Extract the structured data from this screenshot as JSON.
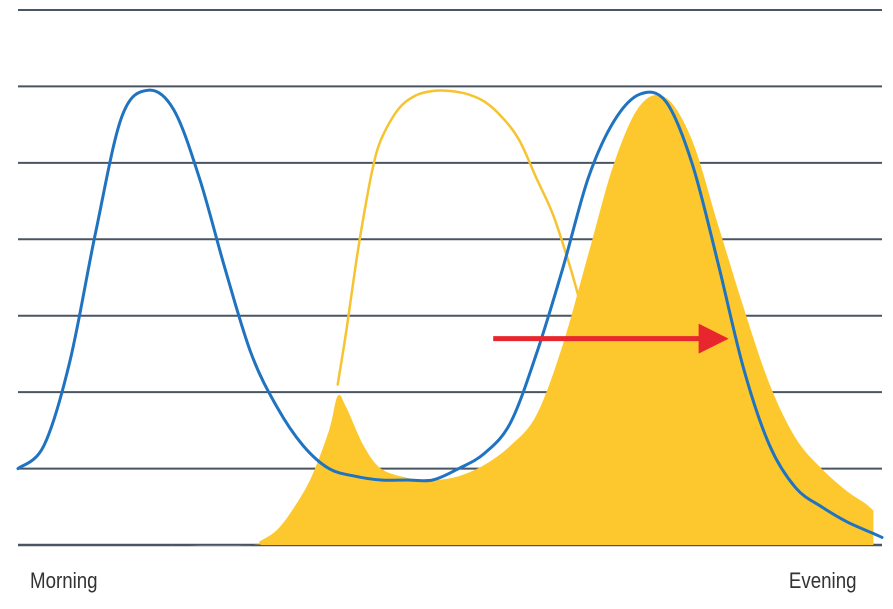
{
  "chart_data": {
    "type": "line",
    "title": "",
    "xlabel": "",
    "ylabel": "",
    "x_start_label": "Morning",
    "x_end_label": "Evening",
    "xlim": [
      0,
      100
    ],
    "ylim": [
      0,
      7
    ],
    "grid": true,
    "gridlines": [
      0,
      1,
      2,
      3,
      4,
      5,
      6,
      7
    ],
    "legend": "none",
    "series": [
      {
        "color": "#1f73c0",
        "fill": false,
        "x": [
          0,
          3,
          6,
          9,
          12,
          15,
          18,
          21,
          24,
          27,
          30,
          33,
          36,
          39,
          42,
          45,
          48,
          51,
          54,
          57,
          60,
          63,
          66,
          69,
          72,
          75,
          78,
          81,
          84,
          87,
          90,
          93,
          96,
          99,
          100
        ],
        "y": [
          1.0,
          1.3,
          2.4,
          4.1,
          5.6,
          5.95,
          5.7,
          4.8,
          3.6,
          2.5,
          1.8,
          1.3,
          1.0,
          0.9,
          0.85,
          0.85,
          0.85,
          1.0,
          1.2,
          1.6,
          2.5,
          3.6,
          4.8,
          5.55,
          5.9,
          5.8,
          5.0,
          3.7,
          2.3,
          1.3,
          0.75,
          0.5,
          0.3,
          0.15,
          0.1
        ]
      },
      {
        "color": "#f5c430",
        "fill": false,
        "x": [
          37,
          38,
          39,
          40,
          41,
          42,
          44,
          46,
          48,
          50,
          52,
          54,
          56,
          58,
          60,
          62,
          64,
          66,
          68,
          69,
          70
        ],
        "y": [
          2.1,
          2.8,
          3.6,
          4.3,
          4.9,
          5.3,
          5.7,
          5.88,
          5.94,
          5.94,
          5.9,
          5.8,
          5.6,
          5.3,
          4.8,
          4.3,
          3.6,
          2.8,
          2.1,
          1.9,
          1.8
        ]
      },
      {
        "color": "#fdc82d",
        "fill": true,
        "x": [
          7,
          15,
          27,
          28,
          30,
          32,
          34,
          36,
          37,
          38,
          40,
          42,
          45,
          48,
          51,
          54,
          57,
          60,
          63,
          66,
          69,
          72,
          75,
          78,
          81,
          84,
          87,
          90,
          93,
          96,
          98,
          99
        ],
        "y": [
          0.0,
          0.0,
          0.0,
          0.05,
          0.2,
          0.5,
          0.9,
          1.5,
          1.95,
          1.8,
          1.3,
          1.0,
          0.88,
          0.85,
          0.9,
          1.05,
          1.3,
          1.7,
          2.6,
          3.8,
          5.0,
          5.75,
          5.85,
          5.3,
          4.2,
          3.1,
          2.1,
          1.4,
          1.0,
          0.7,
          0.55,
          0.45
        ]
      }
    ],
    "annotations": [
      {
        "type": "arrow",
        "color": "#e8262d",
        "from": [
          55,
          2.7
        ],
        "to": [
          83,
          2.7
        ]
      }
    ]
  }
}
